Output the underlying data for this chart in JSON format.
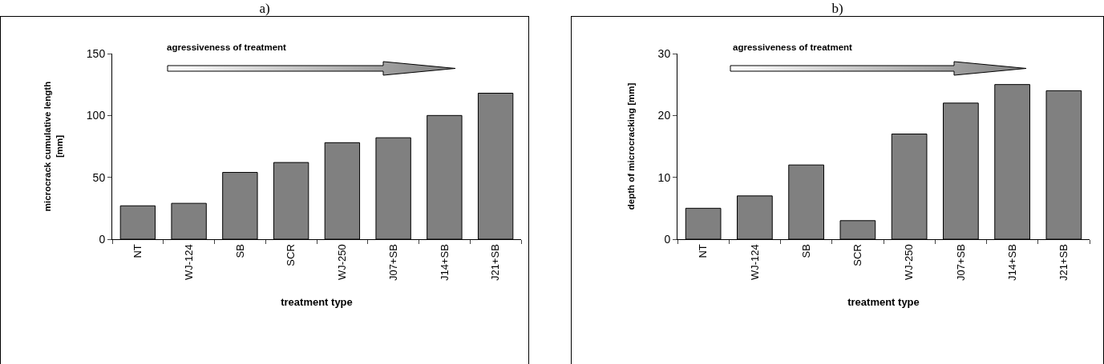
{
  "chart_data": [
    {
      "type": "bar",
      "title": "a)",
      "xlabel": "treatment type",
      "ylabel": "microcrack cumulative length\n[mm]",
      "annotations": [
        "agressiveness of treatment"
      ],
      "categories": [
        "NT",
        "WJ-124",
        "SB",
        "SCR",
        "WJ-250",
        "J07+SB",
        "J14+SB",
        "J21+SB"
      ],
      "values": [
        27,
        29,
        54,
        62,
        78,
        82,
        100,
        118
      ],
      "color": "#808080",
      "ylim": [
        0,
        150
      ],
      "yticks": [
        0,
        50,
        100,
        150
      ],
      "grid": false,
      "legend": false
    },
    {
      "type": "bar",
      "title": "b)",
      "xlabel": "treatment type",
      "ylabel": "depth of microcracking [mm]",
      "annotations": [
        "agressiveness of treatment"
      ],
      "categories": [
        "NT",
        "WJ-124",
        "SB",
        "SCR",
        "WJ-250",
        "J07+SB",
        "J14+SB",
        "J21+SB"
      ],
      "values": [
        5,
        7,
        12,
        3,
        17,
        22,
        25,
        24
      ],
      "color": "#808080",
      "ylim": [
        0,
        30
      ],
      "yticks": [
        0,
        10,
        20,
        30
      ],
      "grid": false,
      "legend": false
    }
  ]
}
